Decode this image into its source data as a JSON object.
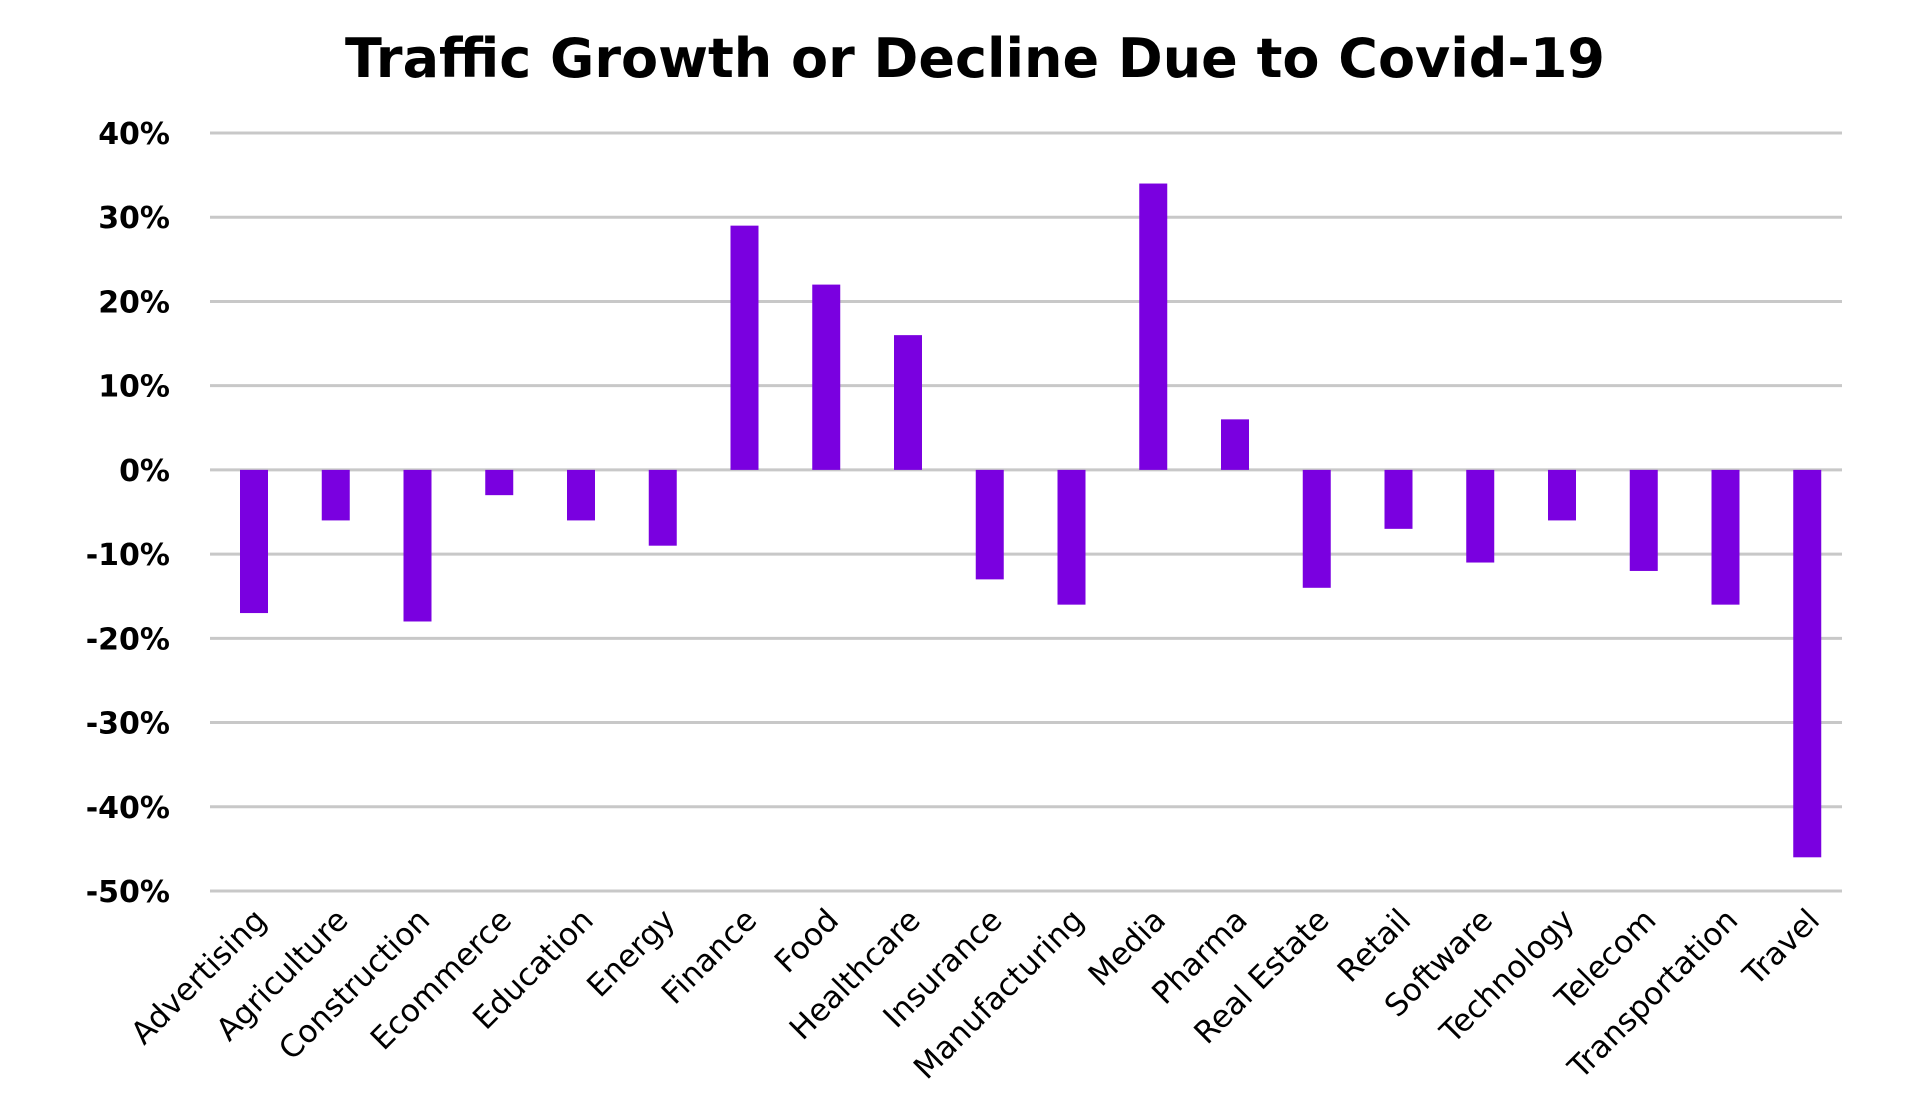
{
  "chart_data": {
    "type": "bar",
    "title": "Traffic Growth or Decline Due to Covid-19",
    "xlabel": "",
    "ylabel": "",
    "categories": [
      "Advertising",
      "Agriculture",
      "Construction",
      "Ecommerce",
      "Education",
      "Energy",
      "Finance",
      "Food",
      "Healthcare",
      "Insurance",
      "Manufacturing",
      "Media",
      "Pharma",
      "Real Estate",
      "Retail",
      "Software",
      "Technology",
      "Telecom",
      "Transportation",
      "Travel"
    ],
    "values": [
      -17,
      -6,
      -18,
      -3,
      -6,
      -9,
      29,
      22,
      16,
      -13,
      -16,
      34,
      6,
      -14,
      -7,
      -11,
      -6,
      -12,
      -16,
      -46
    ],
    "ylim": [
      -50,
      40
    ],
    "yticks": [
      40,
      30,
      20,
      10,
      0,
      -10,
      -20,
      -30,
      -40,
      -50
    ],
    "ytick_labels": [
      "40%",
      "30%",
      "20%",
      "10%",
      "0%",
      "-10%",
      "-20%",
      "-30%",
      "-40%",
      "-50%"
    ],
    "grid": true,
    "legend": "none",
    "bar_color": "#7a00e0",
    "grid_color": "#c8c8c8"
  }
}
